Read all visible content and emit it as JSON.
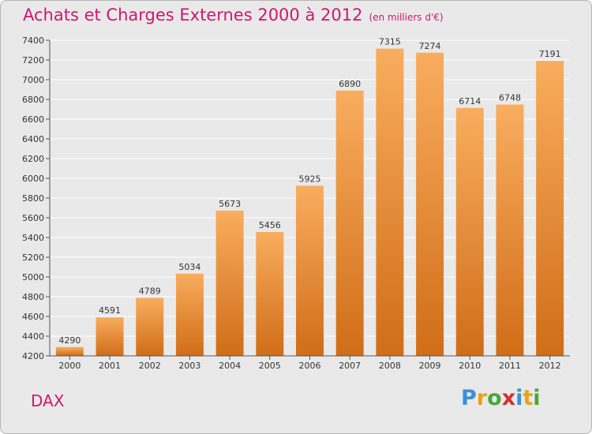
{
  "header": {
    "title": "Achats et Charges Externes 2000 à 2012",
    "unit": "(en milliers d'€)"
  },
  "footer": {
    "city": "DAX",
    "logo_letters": [
      {
        "ch": "P",
        "color": "#3a8fd6"
      },
      {
        "ch": "r",
        "color": "#e8a317"
      },
      {
        "ch": "o",
        "color": "#4aa63a"
      },
      {
        "ch": "x",
        "color": "#d62f2f"
      },
      {
        "ch": "i",
        "color": "#3a8fd6"
      },
      {
        "ch": "t",
        "color": "#e8a317"
      },
      {
        "ch": "i",
        "color": "#4aa63a"
      }
    ]
  },
  "colors": {
    "title": "#d0186b",
    "bar_top": "#f9ad5e",
    "bar_bottom": "#d06d18",
    "grid": "#ffffff",
    "background": "#e9e9e9"
  },
  "chart_data": {
    "type": "bar",
    "title": "Achats et Charges Externes 2000 à 2012",
    "xlabel": "",
    "ylabel": "",
    "categories": [
      "2000",
      "2001",
      "2002",
      "2003",
      "2004",
      "2005",
      "2006",
      "2007",
      "2008",
      "2009",
      "2010",
      "2011",
      "2012"
    ],
    "values": [
      4290,
      4591,
      4789,
      5034,
      5673,
      5456,
      5925,
      6890,
      7315,
      7274,
      6714,
      6748,
      7191
    ],
    "ylim": [
      4200,
      7400
    ],
    "yticks": [
      4200,
      4400,
      4600,
      4800,
      5000,
      5200,
      5400,
      5600,
      5800,
      6000,
      6200,
      6400,
      6600,
      6800,
      7000,
      7200,
      7400
    ],
    "grid": true,
    "legend": "none"
  }
}
